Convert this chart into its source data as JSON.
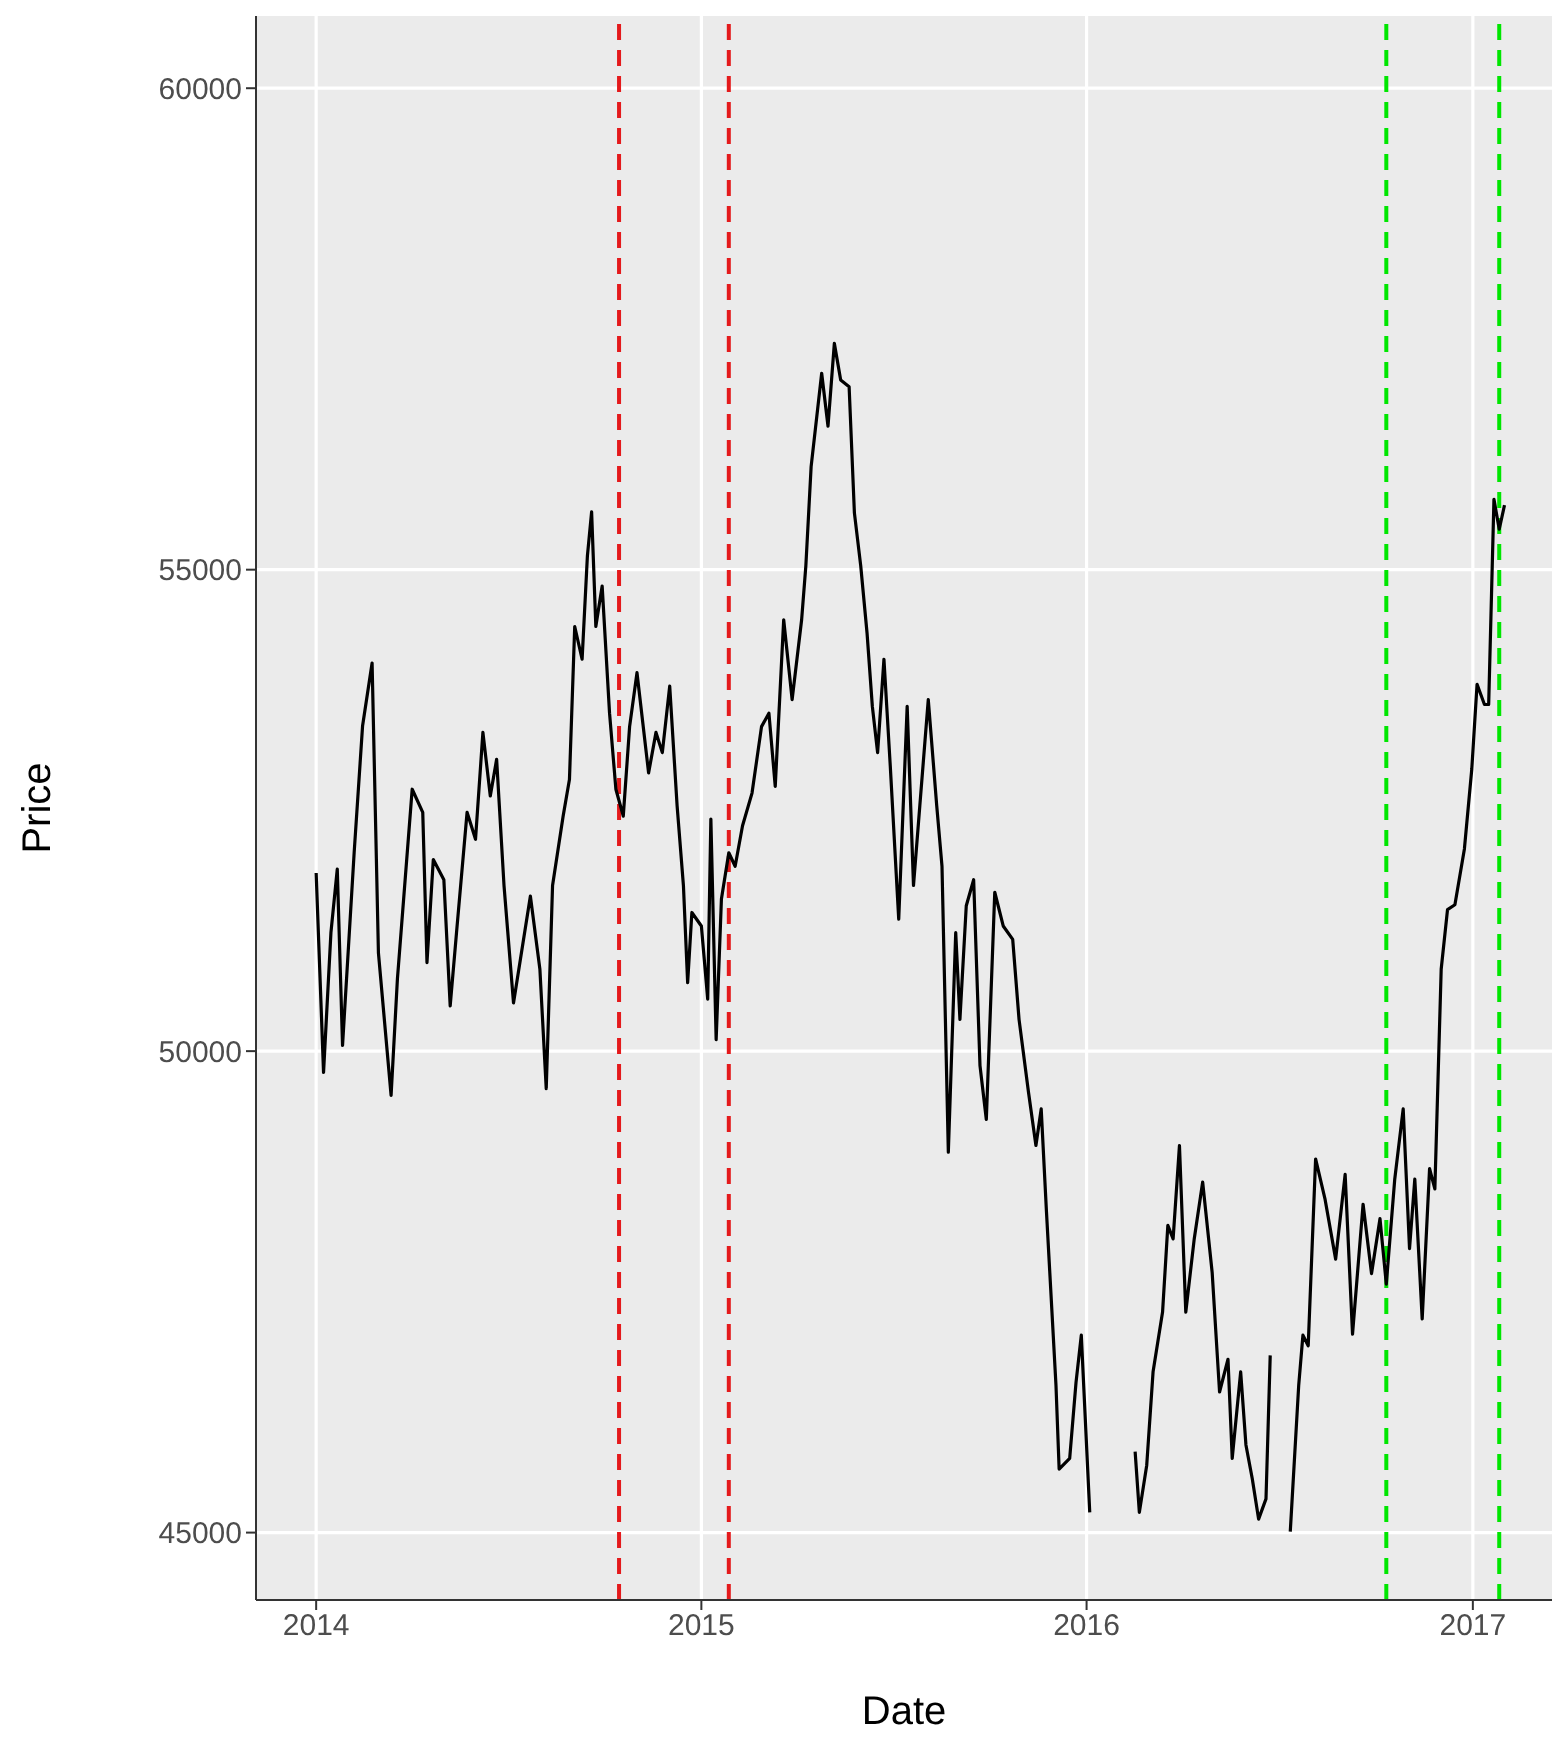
{
  "chart_data": {
    "type": "line",
    "xlabel": "Date",
    "ylabel": "Price",
    "xlim": [
      "2013-11-05",
      "2017-03-17"
    ],
    "xticks": [
      "2014",
      "2015",
      "2016",
      "2017"
    ],
    "ylim": [
      44300,
      60750
    ],
    "yticks": [
      45000,
      50000,
      55000,
      60000
    ],
    "grid": true,
    "marker": "none",
    "line_style": "solid",
    "x": [
      "2014-01-01",
      "2014-01-08",
      "2014-01-15",
      "2014-01-21",
      "2014-01-26",
      "2014-02-06",
      "2014-02-14",
      "2014-02-23",
      "2014-03-01",
      "2014-03-13",
      "2014-03-19",
      "2014-04-02",
      "2014-04-12",
      "2014-04-16",
      "2014-04-22",
      "2014-05-02",
      "2014-05-08",
      "2014-05-14",
      "2014-05-24",
      "2014-06-01",
      "2014-06-08",
      "2014-06-15",
      "2014-06-21",
      "2014-06-28",
      "2014-07-07",
      "2014-07-23",
      "2014-08-01",
      "2014-08-07",
      "2014-08-13",
      "2014-08-23",
      "2014-08-29",
      "2014-09-03",
      "2014-09-10",
      "2014-09-15",
      "2014-09-19",
      "2014-09-23",
      "2014-09-29",
      "2014-10-06",
      "2014-10-12",
      "2014-10-19",
      "2014-10-25",
      "2014-11-01",
      "2014-11-12",
      "2014-11-19",
      "2014-11-25",
      "2014-12-02",
      "2014-12-09",
      "2014-12-15",
      "2014-12-19",
      "2014-12-23",
      "2015-01-01",
      "2015-01-07",
      "2015-01-10",
      "2015-01-15",
      "2015-01-20",
      "2015-01-27",
      "2015-02-02",
      "2015-02-09",
      "2015-02-18",
      "2015-02-27",
      "2015-03-06",
      "2015-03-12",
      "2015-03-20",
      "2015-03-28",
      "2015-04-06",
      "2015-04-10",
      "2015-04-15",
      "2015-04-25",
      "2015-05-01",
      "2015-05-07",
      "2015-05-13",
      "2015-05-21",
      "2015-05-26",
      "2015-06-01",
      "2015-06-07",
      "2015-06-12",
      "2015-06-17",
      "2015-06-23",
      "2015-06-29",
      "2015-07-07",
      "2015-07-15",
      "2015-07-21",
      "2015-07-27",
      "2015-08-04",
      "2015-08-12",
      "2015-08-17",
      "2015-08-23",
      "2015-08-30",
      "2015-09-03",
      "2015-09-09",
      "2015-09-16",
      "2015-09-22",
      "2015-09-28",
      "2015-10-06",
      "2015-10-14",
      "2015-10-23",
      "2015-10-29",
      "2015-11-07",
      "2015-11-14",
      "2015-11-19",
      "2015-11-24",
      "2015-12-03",
      "2015-12-06",
      "2015-12-16",
      "2015-12-22",
      "2015-12-27",
      "2016-01-04",
      "2016-01-20",
      "2016-02-16",
      "2016-02-20",
      "2016-02-27",
      "2016-03-04",
      "2016-03-13",
      "2016-03-18",
      "2016-03-23",
      "2016-03-29",
      "2016-04-04",
      "2016-04-12",
      "2016-04-20",
      "2016-04-29",
      "2016-05-06",
      "2016-05-14",
      "2016-05-18",
      "2016-05-26",
      "2016-05-31",
      "2016-06-06",
      "2016-06-12",
      "2016-06-19",
      "2016-06-23",
      "2016-06-30",
      "2016-07-12",
      "2016-07-20",
      "2016-07-24",
      "2016-07-29",
      "2016-08-05",
      "2016-08-14",
      "2016-08-24",
      "2016-09-02",
      "2016-09-09",
      "2016-09-19",
      "2016-09-27",
      "2016-10-05",
      "2016-10-11",
      "2016-10-19",
      "2016-10-27",
      "2016-11-02",
      "2016-11-07",
      "2016-11-14",
      "2016-11-21",
      "2016-11-26",
      "2016-12-02",
      "2016-12-08",
      "2016-12-15",
      "2016-12-24",
      "2016-12-31",
      "2017-01-05",
      "2017-01-12",
      "2017-01-16",
      "2017-01-21",
      "2017-01-26",
      "2017-01-31"
    ],
    "series": [
      {
        "color": "#000000",
        "values": [
          51850,
          49780,
          51230,
          51890,
          50060,
          52060,
          53380,
          54030,
          51020,
          49540,
          50750,
          52720,
          52480,
          50920,
          51990,
          51780,
          50470,
          51230,
          52480,
          52200,
          53310,
          52650,
          53030,
          51720,
          50500,
          51610,
          50850,
          49610,
          51720,
          52440,
          52820,
          54410,
          54070,
          55140,
          55600,
          54410,
          54830,
          53510,
          52720,
          52440,
          53370,
          53930,
          52890,
          53310,
          53100,
          53790,
          52550,
          51720,
          50710,
          51440,
          51300,
          50540,
          52410,
          50120,
          51580,
          52060,
          51920,
          52340,
          52680,
          53370,
          53510,
          52750,
          54480,
          53650,
          54480,
          55040,
          56070,
          57040,
          56490,
          57350,
          56970,
          56900,
          55590,
          55040,
          54340,
          53580,
          53100,
          54070,
          52960,
          51370,
          53580,
          51720,
          52550,
          53650,
          52550,
          51920,
          48950,
          51230,
          50330,
          51510,
          51780,
          49850,
          49290,
          51650,
          51300,
          51160,
          50330,
          49570,
          49020,
          49400,
          48330,
          46530,
          45660,
          45770,
          46560,
          47050,
          45210,
          null,
          45840,
          45210,
          45700,
          46670,
          47290,
          48190,
          48050,
          49020,
          47290,
          48050,
          48640,
          47700,
          46460,
          46800,
          45770,
          46670,
          45910,
          45560,
          45140,
          45350,
          46840,
          null,
          45010,
          46530,
          47050,
          46940,
          48880,
          48460,
          47840,
          48720,
          47060,
          48410,
          47690,
          48260,
          47580,
          48670,
          49400,
          47950,
          48670,
          47220,
          48780,
          48570,
          50850,
          51470,
          51520,
          52100,
          52930,
          53810,
          53600,
          53600,
          55730,
          55420,
          55670
        ]
      }
    ],
    "ref_lines": [
      {
        "axis": "x",
        "value": "2014-10-15",
        "color": "#e41a1c",
        "line_style": "dashed"
      },
      {
        "axis": "x",
        "value": "2015-01-27",
        "color": "#e41a1c",
        "line_style": "dashed"
      },
      {
        "axis": "x",
        "value": "2016-10-11",
        "color": "#00e600",
        "line_style": "dashed"
      },
      {
        "axis": "x",
        "value": "2017-01-26",
        "color": "#00e600",
        "line_style": "dashed"
      }
    ]
  }
}
